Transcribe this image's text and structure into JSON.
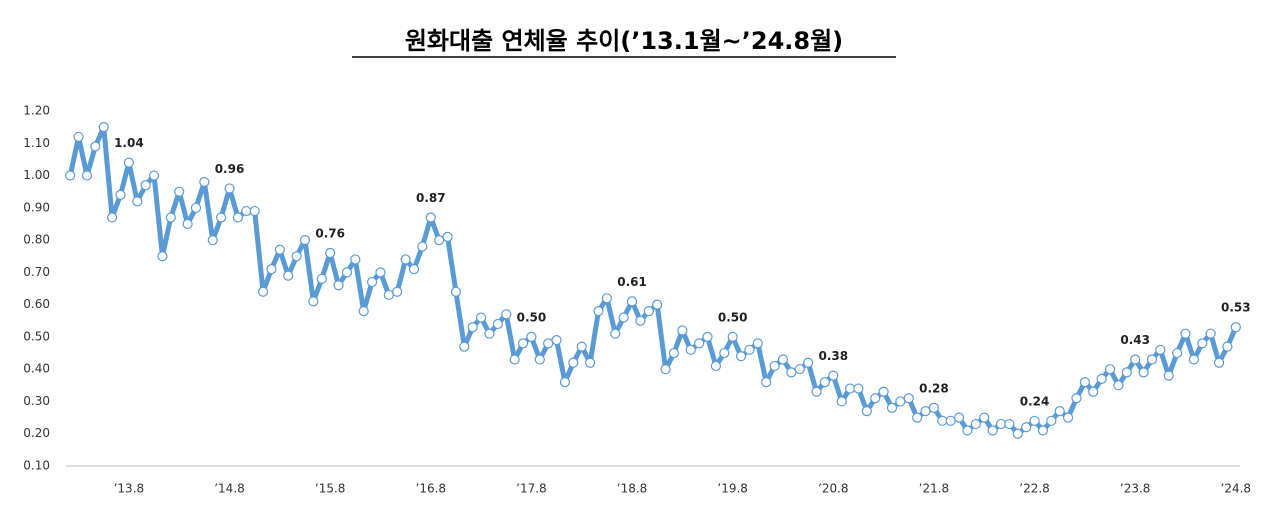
{
  "chart_data": {
    "type": "line",
    "title": "원화대출 연체율 추이(’13.1월~’24.8월)",
    "categories": [
      null,
      null,
      null,
      null,
      null,
      null,
      null,
      "’13.8",
      null,
      null,
      null,
      null,
      null,
      null,
      null,
      null,
      null,
      null,
      null,
      "’14.8",
      null,
      null,
      null,
      null,
      null,
      null,
      null,
      null,
      null,
      null,
      null,
      "’15.8",
      null,
      null,
      null,
      null,
      null,
      null,
      null,
      null,
      null,
      null,
      null,
      "’16.8",
      null,
      null,
      null,
      null,
      null,
      null,
      null,
      null,
      null,
      null,
      null,
      "’17.8",
      null,
      null,
      null,
      null,
      null,
      null,
      null,
      null,
      null,
      null,
      null,
      "’18.8",
      null,
      null,
      null,
      null,
      null,
      null,
      null,
      null,
      null,
      null,
      null,
      "’19.8",
      null,
      null,
      null,
      null,
      null,
      null,
      null,
      null,
      null,
      null,
      null,
      "’20.8",
      null,
      null,
      null,
      null,
      null,
      null,
      null,
      null,
      null,
      null,
      null,
      "’21.8",
      null,
      null,
      null,
      null,
      null,
      null,
      null,
      null,
      null,
      null,
      null,
      "’22.8",
      null,
      null,
      null,
      null,
      null,
      null,
      null,
      null,
      null,
      null,
      null,
      "’23.8",
      null,
      null,
      null,
      null,
      null,
      null,
      null,
      null,
      null,
      null,
      null,
      "’24.8"
    ],
    "values": [
      1.0,
      1.12,
      1.0,
      1.09,
      1.15,
      0.87,
      0.94,
      1.04,
      0.92,
      0.97,
      1.0,
      0.75,
      0.87,
      0.95,
      0.85,
      0.9,
      0.98,
      0.8,
      0.87,
      0.96,
      0.87,
      0.89,
      0.89,
      0.64,
      0.71,
      0.77,
      0.69,
      0.75,
      0.8,
      0.61,
      0.68,
      0.76,
      0.66,
      0.7,
      0.74,
      0.58,
      0.67,
      0.7,
      0.63,
      0.64,
      0.74,
      0.71,
      0.78,
      0.87,
      0.8,
      0.81,
      0.64,
      0.47,
      0.53,
      0.56,
      0.51,
      0.54,
      0.57,
      0.43,
      0.48,
      0.5,
      0.43,
      0.48,
      0.49,
      0.36,
      0.42,
      0.47,
      0.42,
      0.58,
      0.62,
      0.51,
      0.56,
      0.61,
      0.55,
      0.58,
      0.6,
      0.4,
      0.45,
      0.52,
      0.46,
      0.48,
      0.5,
      0.41,
      0.45,
      0.5,
      0.44,
      0.46,
      0.48,
      0.36,
      0.41,
      0.43,
      0.39,
      0.4,
      0.42,
      0.33,
      0.36,
      0.38,
      0.3,
      0.34,
      0.34,
      0.27,
      0.31,
      0.33,
      0.28,
      0.3,
      0.31,
      0.25,
      0.27,
      0.28,
      0.24,
      0.24,
      0.25,
      0.21,
      0.23,
      0.25,
      0.21,
      0.23,
      0.23,
      0.2,
      0.22,
      0.24,
      0.21,
      0.24,
      0.27,
      0.25,
      0.31,
      0.36,
      0.33,
      0.37,
      0.4,
      0.35,
      0.39,
      0.43,
      0.39,
      0.43,
      0.46,
      0.38,
      0.45,
      0.51,
      0.43,
      0.48,
      0.51,
      0.42,
      0.47,
      0.53
    ],
    "value_labels": [
      null,
      null,
      null,
      null,
      null,
      null,
      null,
      "1.04",
      null,
      null,
      null,
      null,
      null,
      null,
      null,
      null,
      null,
      null,
      null,
      "0.96",
      null,
      null,
      null,
      null,
      null,
      null,
      null,
      null,
      null,
      null,
      null,
      "0.76",
      null,
      null,
      null,
      null,
      null,
      null,
      null,
      null,
      null,
      null,
      null,
      "0.87",
      null,
      null,
      null,
      null,
      null,
      null,
      null,
      null,
      null,
      null,
      null,
      "0.50",
      null,
      null,
      null,
      null,
      null,
      null,
      null,
      null,
      null,
      null,
      null,
      "0.61",
      null,
      null,
      null,
      null,
      null,
      null,
      null,
      null,
      null,
      null,
      null,
      "0.50",
      null,
      null,
      null,
      null,
      null,
      null,
      null,
      null,
      null,
      null,
      null,
      "0.38",
      null,
      null,
      null,
      null,
      null,
      null,
      null,
      null,
      null,
      null,
      null,
      "0.28",
      null,
      null,
      null,
      null,
      null,
      null,
      null,
      null,
      null,
      null,
      null,
      "0.24",
      null,
      null,
      null,
      null,
      null,
      null,
      null,
      null,
      null,
      null,
      null,
      "0.43",
      null,
      null,
      null,
      null,
      null,
      null,
      null,
      null,
      null,
      null,
      null,
      "0.53"
    ],
    "color": "#5b9bd5",
    "ylim": [
      0.1,
      1.2
    ],
    "yticks": [
      {
        "value": 0.1,
        "label": "0.10"
      },
      {
        "value": 0.2,
        "label": "0.20"
      },
      {
        "value": 0.3,
        "label": "0.30"
      },
      {
        "value": 0.4,
        "label": "0.40"
      },
      {
        "value": 0.5,
        "label": "0.50"
      },
      {
        "value": 0.6,
        "label": "0.60"
      },
      {
        "value": 0.7,
        "label": "0.70"
      },
      {
        "value": 0.8,
        "label": "0.80"
      },
      {
        "value": 0.9,
        "label": "0.90"
      },
      {
        "value": 1.0,
        "label": "1.00"
      },
      {
        "value": 1.1,
        "label": "1.10"
      },
      {
        "value": 1.2,
        "label": "1.20"
      }
    ],
    "grid": false
  }
}
